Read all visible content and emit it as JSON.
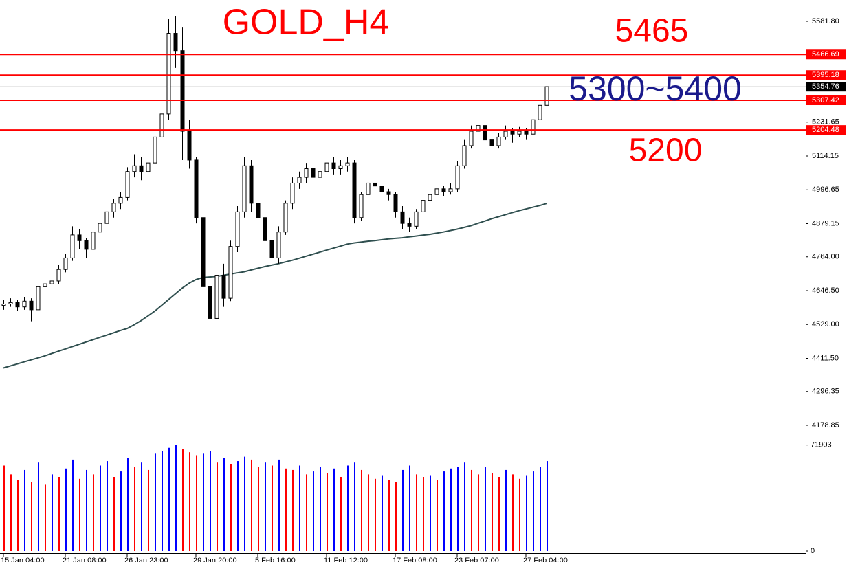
{
  "chart_data": {
    "type": "candlestick",
    "title": "GOLD_H4",
    "annotations": [
      {
        "text": "5465",
        "color": "#ff0000"
      },
      {
        "text": "5300~5400",
        "color": "#1a1a8c"
      },
      {
        "text": "5200",
        "color": "#ff0000"
      }
    ],
    "categories": [
      "15 Jan 04:00",
      null,
      null,
      null,
      null,
      null,
      null,
      null,
      null,
      "21 Jan 08:00",
      null,
      null,
      null,
      null,
      null,
      null,
      null,
      null,
      "26 Jan 23:00",
      null,
      null,
      null,
      null,
      null,
      null,
      null,
      null,
      null,
      "29 Jan 20:00",
      null,
      null,
      null,
      null,
      null,
      null,
      null,
      null,
      "5 Feb 16:00",
      null,
      null,
      null,
      null,
      null,
      null,
      null,
      null,
      null,
      "11 Feb 12:00",
      null,
      null,
      null,
      null,
      null,
      null,
      null,
      null,
      null,
      "17 Feb 08:00",
      null,
      null,
      null,
      null,
      null,
      null,
      null,
      null,
      "23 Feb 07:00",
      null,
      null,
      null,
      null,
      null,
      null,
      null,
      null,
      null,
      "27 Feb 04:00",
      null,
      null,
      null
    ],
    "ohlc": [
      [
        4595,
        4615,
        4580,
        4600
      ],
      [
        4600,
        4620,
        4590,
        4605
      ],
      [
        4605,
        4615,
        4575,
        4590
      ],
      [
        4590,
        4625,
        4580,
        4610
      ],
      [
        4610,
        4620,
        4540,
        4580
      ],
      [
        4580,
        4675,
        4570,
        4660
      ],
      [
        4660,
        4680,
        4650,
        4670
      ],
      [
        4670,
        4695,
        4660,
        4680
      ],
      [
        4680,
        4735,
        4670,
        4720
      ],
      [
        4720,
        4775,
        4710,
        4760
      ],
      [
        4760,
        4870,
        4750,
        4840
      ],
      [
        4840,
        4860,
        4790,
        4820
      ],
      [
        4820,
        4830,
        4760,
        4790
      ],
      [
        4790,
        4865,
        4780,
        4850
      ],
      [
        4850,
        4900,
        4840,
        4880
      ],
      [
        4880,
        4935,
        4860,
        4920
      ],
      [
        4920,
        4965,
        4900,
        4950
      ],
      [
        4950,
        4990,
        4930,
        4970
      ],
      [
        4970,
        5075,
        4960,
        5060
      ],
      [
        5060,
        5120,
        5040,
        5080
      ],
      [
        5080,
        5110,
        5030,
        5060
      ],
      [
        5060,
        5115,
        5040,
        5090
      ],
      [
        5090,
        5200,
        5080,
        5180
      ],
      [
        5180,
        5280,
        5160,
        5260
      ],
      [
        5260,
        5590,
        5240,
        5540
      ],
      [
        5540,
        5600,
        5420,
        5480
      ],
      [
        5480,
        5560,
        5100,
        5200
      ],
      [
        5200,
        5240,
        5070,
        5100
      ],
      [
        5100,
        5110,
        4880,
        4900
      ],
      [
        4900,
        4920,
        4600,
        4660
      ],
      [
        4660,
        4700,
        4430,
        4550
      ],
      [
        4550,
        4720,
        4530,
        4700
      ],
      [
        4700,
        4740,
        4590,
        4620
      ],
      [
        4620,
        4820,
        4610,
        4800
      ],
      [
        4800,
        4940,
        4780,
        4920
      ],
      [
        4920,
        5110,
        4900,
        5080
      ],
      [
        5080,
        5100,
        4920,
        4950
      ],
      [
        4950,
        5010,
        4870,
        4900
      ],
      [
        4900,
        4930,
        4800,
        4820
      ],
      [
        4820,
        4840,
        4660,
        4760
      ],
      [
        4760,
        4870,
        4740,
        4850
      ],
      [
        4850,
        4960,
        4840,
        4950
      ],
      [
        4950,
        5040,
        4930,
        5020
      ],
      [
        5020,
        5060,
        5000,
        5040
      ],
      [
        5040,
        5090,
        5020,
        5070
      ],
      [
        5070,
        5090,
        5020,
        5040
      ],
      [
        5040,
        5075,
        5020,
        5060
      ],
      [
        5060,
        5120,
        5050,
        5090
      ],
      [
        5090,
        5110,
        5050,
        5070
      ],
      [
        5070,
        5100,
        5050,
        5080
      ],
      [
        5080,
        5110,
        5060,
        5090
      ],
      [
        5090,
        5100,
        4880,
        4900
      ],
      [
        4900,
        4990,
        4890,
        4980
      ],
      [
        4980,
        5040,
        4960,
        5020
      ],
      [
        5020,
        5030,
        4990,
        5010
      ],
      [
        5010,
        5020,
        4970,
        4990
      ],
      [
        4990,
        5000,
        4960,
        4980
      ],
      [
        4980,
        4990,
        4900,
        4920
      ],
      [
        4920,
        4940,
        4860,
        4880
      ],
      [
        4880,
        4900,
        4850,
        4870
      ],
      [
        4870,
        4930,
        4860,
        4920
      ],
      [
        4920,
        4975,
        4910,
        4960
      ],
      [
        4960,
        4995,
        4950,
        4980
      ],
      [
        4980,
        5015,
        4970,
        5000
      ],
      [
        5000,
        5010,
        4975,
        4990
      ],
      [
        4990,
        5020,
        4980,
        5000
      ],
      [
        5000,
        5095,
        4990,
        5080
      ],
      [
        5080,
        5170,
        5070,
        5150
      ],
      [
        5150,
        5220,
        5140,
        5200
      ],
      [
        5200,
        5250,
        5180,
        5220
      ],
      [
        5220,
        5230,
        5120,
        5170
      ],
      [
        5170,
        5180,
        5110,
        5150
      ],
      [
        5150,
        5195,
        5140,
        5180
      ],
      [
        5180,
        5220,
        5170,
        5200
      ],
      [
        5200,
        5210,
        5160,
        5190
      ],
      [
        5190,
        5215,
        5180,
        5200
      ],
      [
        5200,
        5210,
        5170,
        5190
      ],
      [
        5190,
        5255,
        5185,
        5240
      ],
      [
        5240,
        5300,
        5230,
        5290
      ],
      [
        5290,
        5400,
        5290,
        5355
      ]
    ],
    "up_color": "#ffffff",
    "down_color": "#000000",
    "ma": {
      "color": "#2f4f4f",
      "values": [
        4378,
        4385,
        4392,
        4399,
        4406,
        4413,
        4420,
        4428,
        4436,
        4444,
        4452,
        4460,
        4468,
        4476,
        4484,
        4492,
        4500,
        4508,
        4515,
        4528,
        4542,
        4558,
        4575,
        4595,
        4615,
        4635,
        4655,
        4672,
        4685,
        4692,
        4694,
        4696,
        4700,
        4704,
        4708,
        4712,
        4718,
        4724,
        4730,
        4735,
        4740,
        4746,
        4752,
        4759,
        4766,
        4773,
        4780,
        4787,
        4794,
        4801,
        4808,
        4812,
        4815,
        4818,
        4820,
        4823,
        4826,
        4828,
        4830,
        4833,
        4836,
        4839,
        4842,
        4846,
        4850,
        4855,
        4860,
        4866,
        4872,
        4880,
        4888,
        4896,
        4903,
        4910,
        4917,
        4924,
        4930,
        4936,
        4942,
        4949
      ]
    },
    "ylim": [
      4135.9,
      5655.8
    ],
    "yticks": [
      {
        "value": 5581.8,
        "label": "5581.80"
      },
      5231.65,
      5114.15,
      4996.65,
      4879.15,
      {
        "value": 4764,
        "label": "4764.00"
      },
      {
        "value": 4646.5,
        "label": "4646.50"
      },
      {
        "value": 4529,
        "label": "4529.00"
      },
      {
        "value": 4411.5,
        "label": "4411.50"
      },
      4296.35,
      4178.85
    ],
    "levels": [
      5466.69,
      5395.18,
      5307.42,
      5204.48
    ],
    "level_color": "#ff0000",
    "last_price": 5354.76,
    "volume": {
      "ylim": [
        0,
        75000
      ],
      "yticks": [
        71903,
        0
      ],
      "up_color": "#0000ff",
      "down_color": "#ff0000",
      "values": [
        58000,
        52000,
        48000,
        55000,
        47000,
        60000,
        45000,
        52000,
        50000,
        56000,
        62000,
        49000,
        55000,
        52000,
        58000,
        61000,
        50000,
        54000,
        63000,
        57000,
        60000,
        55000,
        66000,
        68000,
        70000,
        71903,
        69000,
        67000,
        65000,
        66000,
        68000,
        60000,
        63000,
        59000,
        61000,
        64000,
        62000,
        57000,
        60000,
        58000,
        62000,
        56000,
        55000,
        58000,
        52000,
        54000,
        57000,
        53000,
        56000,
        50000,
        58000,
        60000,
        55000,
        52000,
        49000,
        51000,
        48000,
        47000,
        55000,
        58000,
        52000,
        50000,
        51000,
        48000,
        54000,
        56000,
        57000,
        60000,
        55000,
        52000,
        57000,
        53000,
        50000,
        55000,
        52000,
        49000,
        51000,
        54000,
        57000,
        61000
      ]
    }
  }
}
